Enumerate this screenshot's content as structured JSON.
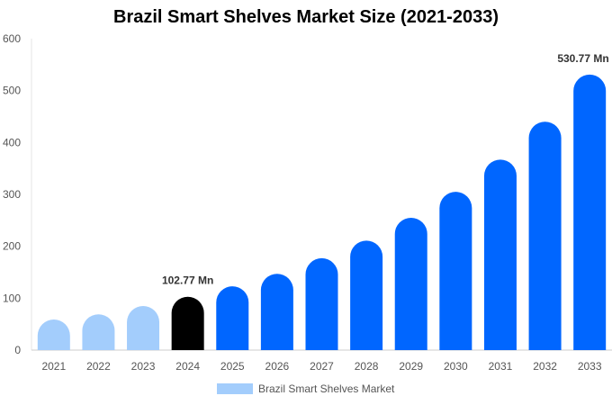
{
  "chart_data": {
    "type": "bar",
    "title": "Brazil Smart Shelves Market Size (2021-2033)",
    "categories": [
      "2021",
      "2022",
      "2023",
      "2024",
      "2025",
      "2026",
      "2027",
      "2028",
      "2029",
      "2030",
      "2031",
      "2032",
      "2033"
    ],
    "series": [
      {
        "name": "Brazil Smart Shelves Market",
        "values": [
          59,
          69,
          85,
          102.77,
          123,
          147,
          177,
          211,
          255,
          305,
          367,
          440,
          530.77
        ]
      }
    ],
    "bar_colors": [
      "#a3cdfc",
      "#a3cdfc",
      "#a3cdfc",
      "#000000",
      "#0066ff",
      "#0066ff",
      "#0066ff",
      "#0066ff",
      "#0066ff",
      "#0066ff",
      "#0066ff",
      "#0066ff",
      "#0066ff"
    ],
    "data_labels": {
      "3": "102.77 Mn",
      "12": "530.77 Mn"
    },
    "yticks": [
      0,
      100,
      200,
      300,
      400,
      500,
      600
    ],
    "ylim": [
      0,
      600
    ],
    "xlabel": "",
    "ylabel": "",
    "grid": false,
    "legend": "bottom",
    "legend_color": "#a3cdfc"
  }
}
